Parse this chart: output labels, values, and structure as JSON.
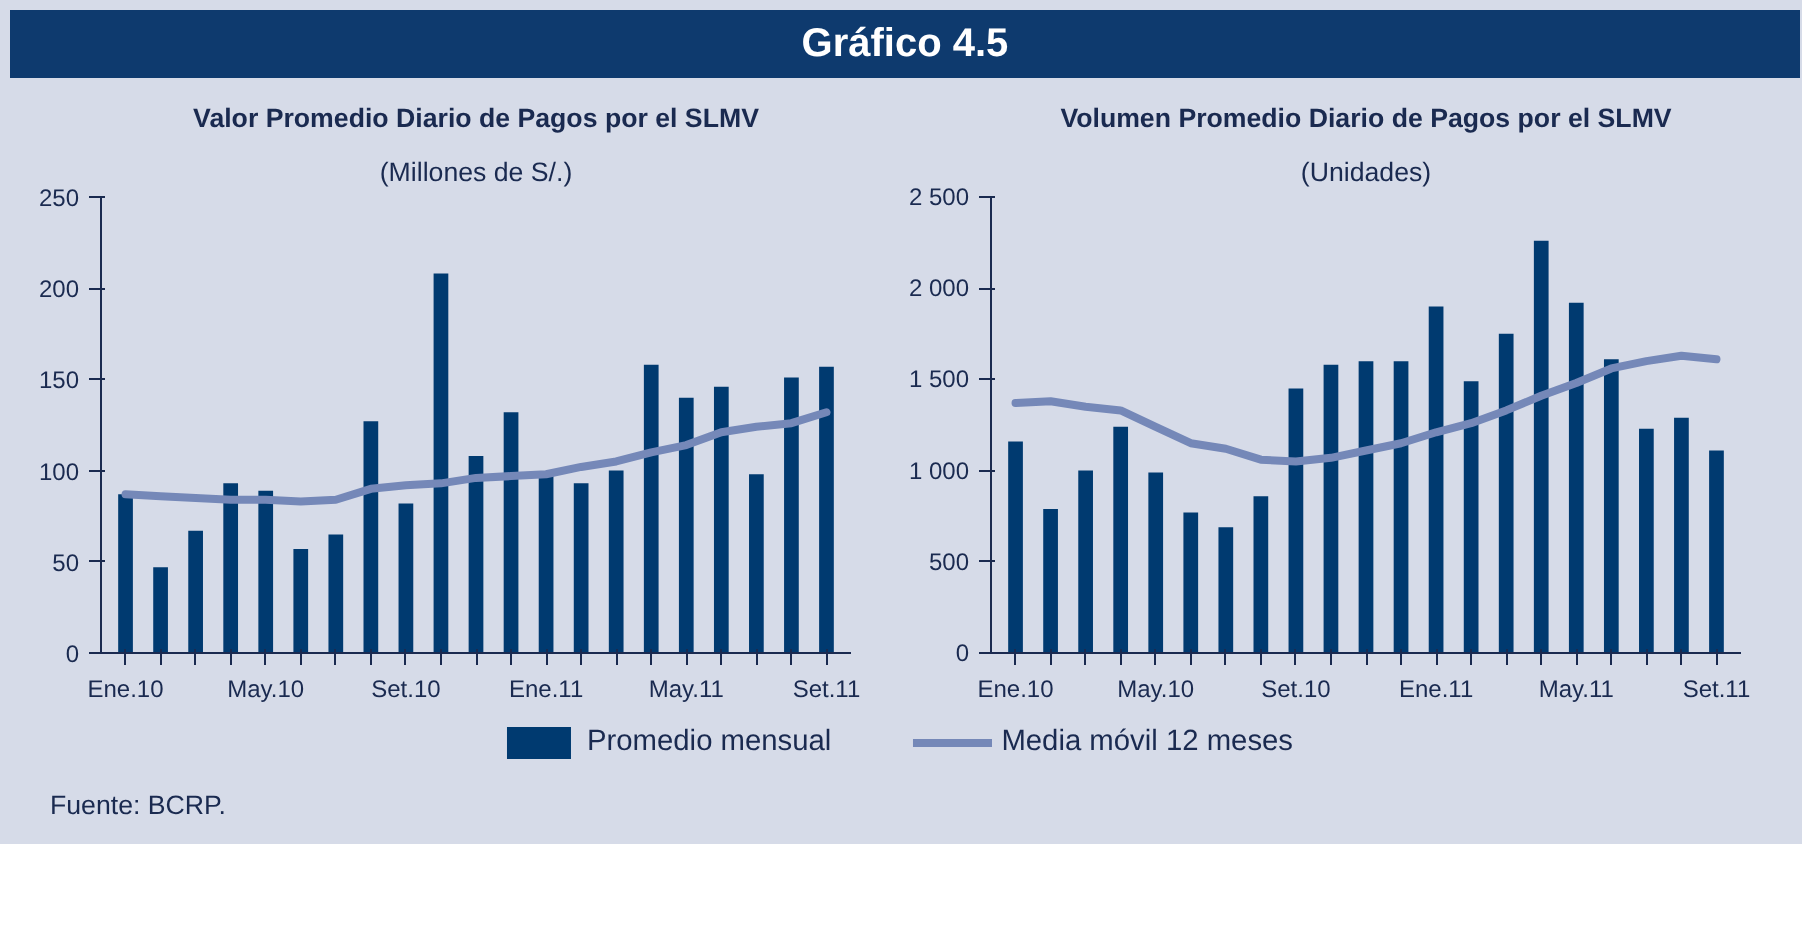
{
  "chart_data": [
    {
      "type": "bar",
      "title": "Valor Promedio Diario de Pagos por el SLMV",
      "subtitle": "(Millones de S/.)",
      "annotations": [
        "Gráfico 4.5",
        "Fuente: BCRP."
      ],
      "categories": [
        "Ene.10",
        null,
        null,
        null,
        "May.10",
        null,
        null,
        null,
        "Set.10",
        null,
        null,
        null,
        "Ene.11",
        null,
        null,
        null,
        "May.11",
        null,
        null,
        null,
        "Set.11"
      ],
      "series": [
        {
          "name": "Promedio mensual",
          "color": "#003a70",
          "values": [
            87,
            47,
            67,
            93,
            89,
            57,
            65,
            127,
            82,
            208,
            108,
            132,
            97,
            93,
            100,
            158,
            140,
            146,
            98,
            151,
            157
          ]
        },
        {
          "name": "Media móvil 12 meses",
          "type": "line",
          "color": "#7588b8",
          "values": [
            87,
            86,
            85,
            84,
            84,
            83,
            84,
            90,
            92,
            93,
            96,
            97,
            98,
            102,
            105,
            110,
            114,
            121,
            124,
            126,
            132
          ]
        }
      ],
      "ylim": [
        0,
        250
      ],
      "yticks": [
        0,
        50,
        100,
        150,
        200,
        250
      ],
      "grid": false,
      "legend": "bottom"
    },
    {
      "type": "bar",
      "title": "Volumen Promedio Diario de Pagos por el SLMV",
      "subtitle": "(Unidades)",
      "categories": [
        "Ene.10",
        null,
        null,
        null,
        "May.10",
        null,
        null,
        null,
        "Set.10",
        null,
        null,
        null,
        "Ene.11",
        null,
        null,
        null,
        "May.11",
        null,
        null,
        null,
        "Set.11"
      ],
      "series": [
        {
          "color": "#003a70",
          "values": [
            1160,
            790,
            1000,
            1240,
            990,
            770,
            690,
            860,
            1450,
            1580,
            1600,
            1600,
            1900,
            1490,
            1750,
            2260,
            1920,
            1610,
            1230,
            1290,
            1110
          ]
        },
        {
          "type": "line",
          "color": "#7588b8",
          "values": [
            1370,
            1380,
            1350,
            1330,
            1240,
            1150,
            1120,
            1060,
            1050,
            1070,
            1110,
            1150,
            1210,
            1260,
            1330,
            1410,
            1480,
            1560,
            1600,
            1630,
            1610
          ]
        }
      ],
      "ylim": [
        0,
        2500
      ],
      "yticks": [
        0,
        {
          "value": 500,
          "label": "500"
        },
        {
          "value": 1000,
          "label": "1 000"
        },
        {
          "value": 1500,
          "label": "1 500"
        },
        {
          "value": 2000,
          "label": "2 000"
        },
        {
          "value": 2500,
          "label": "2 500"
        }
      ],
      "grid": false
    }
  ]
}
